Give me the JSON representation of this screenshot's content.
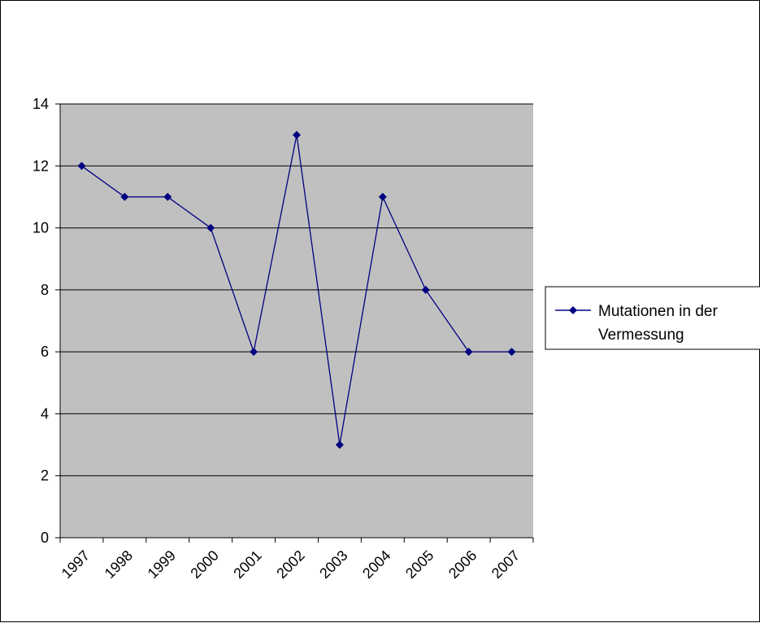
{
  "colors": {
    "plot_background": "#c0c0c0",
    "series_line": "#000080",
    "gridline": "#000000"
  },
  "chart_data": {
    "type": "line",
    "categories": [
      "1997",
      "1998",
      "1999",
      "2000",
      "2001",
      "2002",
      "2003",
      "2004",
      "2005",
      "2006",
      "2007"
    ],
    "series": [
      {
        "name": "Mutationen in der Vermessung",
        "values": [
          12,
          11,
          11,
          10,
          6,
          13,
          3,
          11,
          8,
          6,
          6
        ],
        "marker": "diamond"
      }
    ],
    "ylim": [
      0,
      14
    ],
    "yticks": [
      "0",
      "2",
      "4",
      "6",
      "8",
      "10",
      "12",
      "14"
    ],
    "grid": true,
    "legend": "right",
    "legend_lines": [
      "Mutationen in der",
      "Vermessung"
    ]
  }
}
